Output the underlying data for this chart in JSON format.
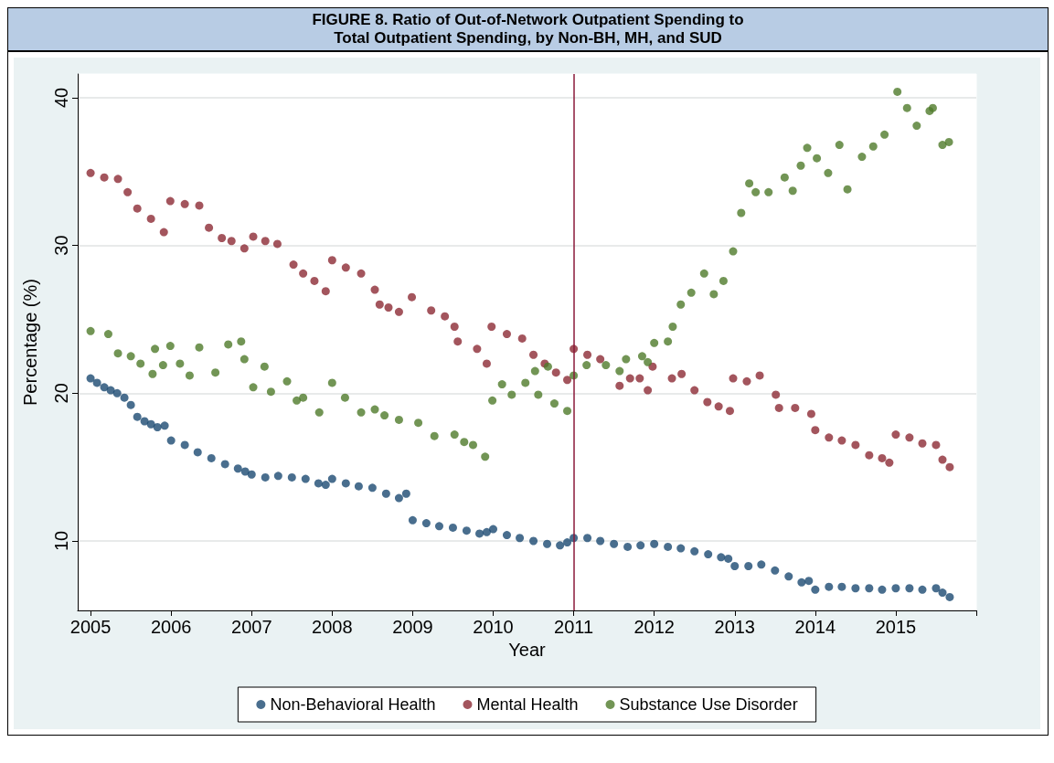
{
  "chart_data": {
    "type": "scatter",
    "title": "FIGURE 8. Ratio of Out-of-Network Outpatient Spending to\nTotal Outpatient Spending, by Non-BH, MH, and SUD",
    "xlabel": "Year",
    "ylabel": "Percentage (%)",
    "xlim": [
      2004.84,
      2016
    ],
    "xticks": [
      2005,
      2006,
      2007,
      2008,
      2009,
      2010,
      2011,
      2012,
      2013,
      2014,
      2015,
      {
        "value": 2016,
        "label": null
      }
    ],
    "ylim": [
      5.3,
      41.6
    ],
    "yticks": [
      10,
      20,
      30,
      40
    ],
    "grid": "y",
    "legend": "bottom",
    "marker": "circle",
    "ref_lines": [
      {
        "axis": "x",
        "value": 2011,
        "color": "#8b1a3a"
      }
    ],
    "series": [
      {
        "name": "Non-Behavioral Health",
        "color": "#1b4a72",
        "x": [
          2005.0,
          2005.08,
          2005.17,
          2005.25,
          2005.33,
          2005.42,
          2005.5,
          2005.58,
          2005.67,
          2005.75,
          2005.83,
          2005.92,
          2006.0,
          2006.17,
          2006.33,
          2006.5,
          2006.67,
          2006.83,
          2006.92,
          2007.0,
          2007.17,
          2007.33,
          2007.5,
          2007.67,
          2007.83,
          2007.92,
          2008.0,
          2008.17,
          2008.33,
          2008.5,
          2008.67,
          2008.83,
          2008.92,
          2009.0,
          2009.17,
          2009.33,
          2009.5,
          2009.67,
          2009.83,
          2009.92,
          2010.0,
          2010.17,
          2010.33,
          2010.5,
          2010.67,
          2010.83,
          2010.92,
          2011.0,
          2011.17,
          2011.33,
          2011.5,
          2011.67,
          2011.83,
          2012.0,
          2012.17,
          2012.33,
          2012.5,
          2012.67,
          2012.83,
          2012.92,
          2013.0,
          2013.17,
          2013.33,
          2013.5,
          2013.67,
          2013.83,
          2013.92,
          2014.0,
          2014.17,
          2014.33,
          2014.5,
          2014.67,
          2014.83,
          2015.0,
          2015.17,
          2015.33,
          2015.5,
          2015.58,
          2015.67
        ],
        "values": [
          21.0,
          20.7,
          20.4,
          20.2,
          20.0,
          19.7,
          19.2,
          18.4,
          18.1,
          17.9,
          17.7,
          17.8,
          16.8,
          16.5,
          16.0,
          15.6,
          15.2,
          14.9,
          14.7,
          14.5,
          14.3,
          14.4,
          14.3,
          14.2,
          13.9,
          13.8,
          14.2,
          13.9,
          13.7,
          13.6,
          13.2,
          12.9,
          13.2,
          11.4,
          11.2,
          11.0,
          10.9,
          10.7,
          10.5,
          10.6,
          10.8,
          10.4,
          10.2,
          10.0,
          9.8,
          9.7,
          9.9,
          10.2,
          10.2,
          10.0,
          9.8,
          9.6,
          9.7,
          9.8,
          9.6,
          9.5,
          9.3,
          9.1,
          8.9,
          8.8,
          8.3,
          8.3,
          8.4,
          8.0,
          7.6,
          7.2,
          7.3,
          6.7,
          6.9,
          6.9,
          6.8,
          6.8,
          6.7,
          6.8,
          6.8,
          6.7,
          6.8,
          6.5,
          6.2
        ]
      },
      {
        "name": "Mental Health",
        "color": "#8c2b34",
        "x": [
          2005.0,
          2005.17,
          2005.34,
          2005.46,
          2005.58,
          2005.75,
          2005.91,
          2005.99,
          2006.17,
          2006.35,
          2006.47,
          2006.63,
          2006.75,
          2006.91,
          2007.02,
          2007.17,
          2007.32,
          2007.52,
          2007.64,
          2007.78,
          2007.92,
          2008.0,
          2008.17,
          2008.36,
          2008.53,
          2008.59,
          2008.7,
          2008.83,
          2008.99,
          2009.23,
          2009.4,
          2009.52,
          2009.56,
          2009.8,
          2009.92,
          2009.98,
          2010.17,
          2010.36,
          2010.5,
          2010.64,
          2010.78,
          2010.92,
          2011.0,
          2011.17,
          2011.33,
          2011.57,
          2011.7,
          2011.82,
          2011.92,
          2011.98,
          2012.22,
          2012.34,
          2012.5,
          2012.66,
          2012.8,
          2012.94,
          2012.98,
          2013.15,
          2013.31,
          2013.51,
          2013.55,
          2013.75,
          2013.95,
          2014.0,
          2014.17,
          2014.33,
          2014.5,
          2014.67,
          2014.83,
          2014.92,
          2015.0,
          2015.17,
          2015.33,
          2015.5,
          2015.58,
          2015.67
        ],
        "values": [
          34.9,
          34.6,
          34.5,
          33.6,
          32.5,
          31.8,
          30.9,
          33.0,
          32.8,
          32.7,
          31.2,
          30.5,
          30.3,
          29.8,
          30.6,
          30.3,
          30.1,
          28.7,
          28.1,
          27.6,
          26.9,
          29.0,
          28.5,
          28.1,
          27.0,
          26.0,
          25.8,
          25.5,
          26.5,
          25.6,
          25.2,
          24.5,
          23.5,
          23.0,
          22.0,
          24.5,
          24.0,
          23.7,
          22.6,
          22.0,
          21.4,
          20.9,
          23.0,
          22.6,
          22.3,
          20.5,
          21.0,
          21.0,
          20.2,
          21.8,
          21.0,
          21.3,
          20.2,
          19.4,
          19.1,
          18.8,
          21.0,
          20.8,
          21.2,
          19.9,
          19.0,
          19.0,
          18.6,
          17.5,
          17.0,
          16.8,
          16.5,
          15.8,
          15.6,
          15.3,
          17.2,
          17.0,
          16.6,
          16.5,
          15.5,
          15.0
        ]
      },
      {
        "name": "Substance Use Disorder",
        "color": "#4f7a2b",
        "x": [
          2005.0,
          2005.22,
          2005.34,
          2005.5,
          2005.62,
          2005.77,
          2005.8,
          2005.9,
          2005.99,
          2006.11,
          2006.23,
          2006.35,
          2006.55,
          2006.71,
          2006.87,
          2006.91,
          2007.02,
          2007.16,
          2007.24,
          2007.44,
          2007.56,
          2007.64,
          2007.84,
          2008.0,
          2008.16,
          2008.36,
          2008.53,
          2008.65,
          2008.83,
          2009.07,
          2009.27,
          2009.52,
          2009.64,
          2009.75,
          2009.9,
          2009.99,
          2010.11,
          2010.23,
          2010.4,
          2010.52,
          2010.56,
          2010.68,
          2010.76,
          2010.92,
          2011.0,
          2011.16,
          2011.4,
          2011.57,
          2011.65,
          2011.85,
          2011.92,
          2012.0,
          2012.17,
          2012.23,
          2012.33,
          2012.46,
          2012.62,
          2012.74,
          2012.86,
          2012.98,
          2013.08,
          2013.18,
          2013.26,
          2013.42,
          2013.62,
          2013.72,
          2013.82,
          2013.9,
          2014.02,
          2014.16,
          2014.3,
          2014.4,
          2014.58,
          2014.72,
          2014.86,
          2015.02,
          2015.14,
          2015.26,
          2015.42,
          2015.46,
          2015.58,
          2015.66
        ],
        "values": [
          24.2,
          24.0,
          22.7,
          22.5,
          22.0,
          21.3,
          23.0,
          21.9,
          23.2,
          22.0,
          21.2,
          23.1,
          21.4,
          23.3,
          23.5,
          22.3,
          20.4,
          21.8,
          20.1,
          20.8,
          19.5,
          19.7,
          18.7,
          20.7,
          19.7,
          18.7,
          18.9,
          18.5,
          18.2,
          18.0,
          17.1,
          17.2,
          16.7,
          16.5,
          15.7,
          19.5,
          20.6,
          19.9,
          20.7,
          21.5,
          19.9,
          21.8,
          19.3,
          18.8,
          21.2,
          21.9,
          21.9,
          21.5,
          22.3,
          22.5,
          22.1,
          23.4,
          23.5,
          24.5,
          26.0,
          26.8,
          28.1,
          26.7,
          27.6,
          29.6,
          32.2,
          34.2,
          33.6,
          33.6,
          34.6,
          33.7,
          35.4,
          36.6,
          35.9,
          34.9,
          36.8,
          33.8,
          36.0,
          36.7,
          37.5,
          40.4,
          39.3,
          38.1,
          39.1,
          39.3,
          36.8,
          37.0
        ]
      }
    ]
  }
}
